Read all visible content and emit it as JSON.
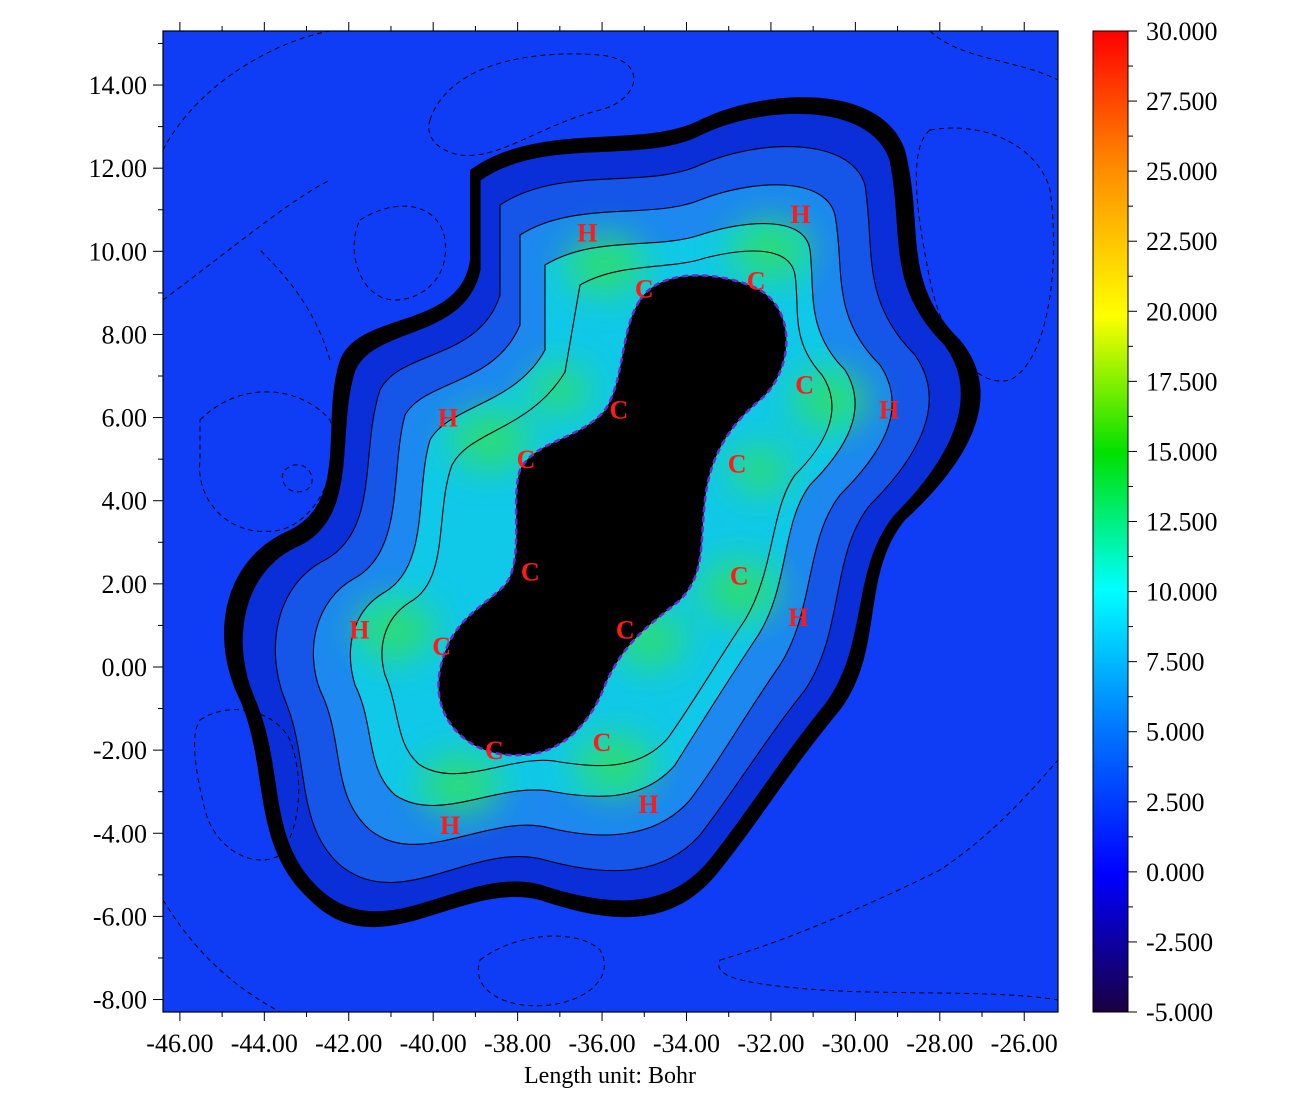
{
  "chart_data": {
    "type": "heatmap",
    "title": "",
    "xlabel": "Length unit: Bohr",
    "ylabel": "",
    "xlim": [
      -46.4,
      -25.2
    ],
    "ylim": [
      -8.3,
      15.3
    ],
    "x_ticks": [
      "-46.00",
      "-44.00",
      "-42.00",
      "-40.00",
      "-38.00",
      "-36.00",
      "-34.00",
      "-32.00",
      "-30.00",
      "-28.00",
      "-26.00"
    ],
    "x_tick_values": [
      -46,
      -44,
      -42,
      -40,
      -38,
      -36,
      -34,
      -32,
      -30,
      -28,
      -26
    ],
    "y_ticks": [
      "14.00",
      "12.00",
      "10.00",
      "8.00",
      "6.00",
      "4.00",
      "2.00",
      "0.00",
      "-2.00",
      "-4.00",
      "-6.00",
      "-8.00"
    ],
    "y_tick_values": [
      14,
      12,
      10,
      8,
      6,
      4,
      2,
      0,
      -2,
      -4,
      -6,
      -8
    ],
    "colorbar": {
      "min": -5.0,
      "max": 30.0,
      "labels": [
        "30.000",
        "27.500",
        "25.000",
        "22.500",
        "20.000",
        "17.500",
        "15.000",
        "12.500",
        "10.000",
        "7.500",
        "5.000",
        "2.500",
        "0.000",
        "-2.500",
        "-5.000"
      ],
      "values": [
        30,
        27.5,
        25,
        22.5,
        20,
        17.5,
        15,
        12.5,
        10,
        7.5,
        5,
        2.5,
        0,
        -2.5,
        -5
      ],
      "colors": [
        "#ff0000",
        "#ff8c00",
        "#ffff00",
        "#00e000",
        "#00ffff",
        "#0078ff",
        "#0000ff",
        "#1a0040"
      ]
    },
    "atoms": [
      {
        "label": "C",
        "x": -35.0,
        "y": 9.1
      },
      {
        "label": "C",
        "x": -32.35,
        "y": 9.3
      },
      {
        "label": "C",
        "x": -31.2,
        "y": 6.8
      },
      {
        "label": "C",
        "x": -35.6,
        "y": 6.2
      },
      {
        "label": "C",
        "x": -37.8,
        "y": 5.0
      },
      {
        "label": "C",
        "x": -32.8,
        "y": 4.9
      },
      {
        "label": "C",
        "x": -37.7,
        "y": 2.3
      },
      {
        "label": "C",
        "x": -32.75,
        "y": 2.2
      },
      {
        "label": "C",
        "x": -39.8,
        "y": 0.5
      },
      {
        "label": "C",
        "x": -35.45,
        "y": 0.9
      },
      {
        "label": "C",
        "x": -38.55,
        "y": -2.0
      },
      {
        "label": "C",
        "x": -36.0,
        "y": -1.8
      },
      {
        "label": "H",
        "x": -36.35,
        "y": 10.45
      },
      {
        "label": "H",
        "x": -31.3,
        "y": 10.9
      },
      {
        "label": "H",
        "x": -39.65,
        "y": 6.0
      },
      {
        "label": "H",
        "x": -29.2,
        "y": 6.2
      },
      {
        "label": "H",
        "x": -41.75,
        "y": 0.9
      },
      {
        "label": "H",
        "x": -31.35,
        "y": 1.2
      },
      {
        "label": "H",
        "x": -39.6,
        "y": -3.8
      },
      {
        "label": "H",
        "x": -34.9,
        "y": -3.3
      }
    ]
  }
}
